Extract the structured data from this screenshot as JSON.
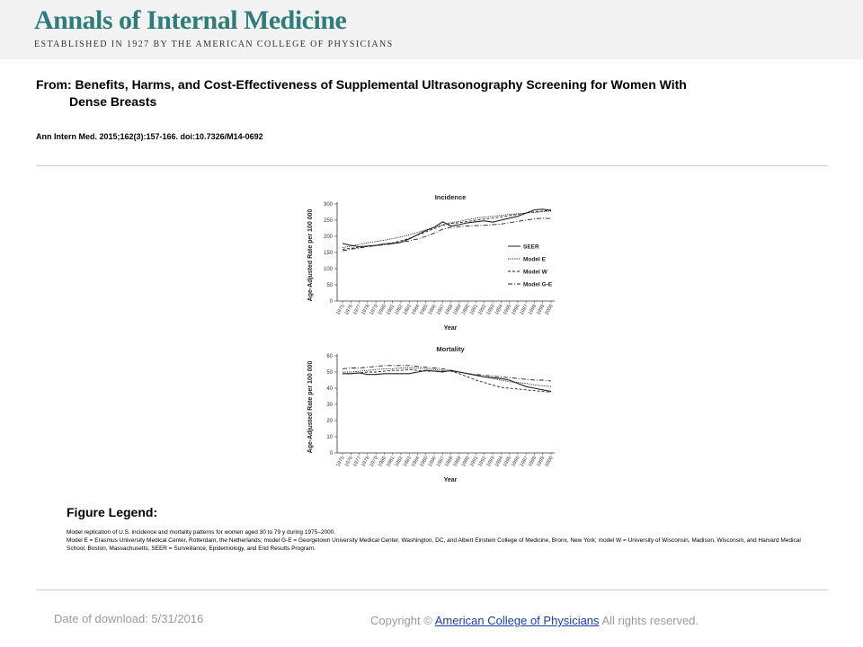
{
  "header": {
    "journal": "Annals of Internal Medicine",
    "established": "ESTABLISHED IN 1927 BY THE AMERICAN COLLEGE OF PHYSICIANS",
    "brand_color": "#2f7d7a"
  },
  "article": {
    "title_line1": "From: Benefits, Harms, and Cost-Effectiveness of Supplemental Ultrasonography Screening for Women With",
    "title_line2": "Dense Breasts",
    "citation": "Ann Intern Med. 2015;162(3):157-166. doi:10.7326/M14-0692"
  },
  "chart_data": [
    {
      "type": "line",
      "title": "Incidence",
      "xlabel": "Year",
      "ylabel": "Age-Adjusted Rate per 100 000",
      "ylim": [
        0,
        300
      ],
      "yticks": [
        0,
        50,
        100,
        150,
        200,
        250,
        300
      ],
      "legend": "right",
      "x": [
        1975,
        1976,
        1977,
        1978,
        1979,
        1980,
        1981,
        1982,
        1983,
        1984,
        1985,
        1986,
        1987,
        1988,
        1989,
        1990,
        1991,
        1992,
        1993,
        1994,
        1995,
        1996,
        1997,
        1998,
        1999,
        2000
      ],
      "series": [
        {
          "name": "SEER",
          "values": [
            178,
            172,
            168,
            170,
            172,
            176,
            178,
            182,
            192,
            205,
            218,
            228,
            245,
            232,
            236,
            242,
            245,
            248,
            244,
            250,
            256,
            262,
            272,
            282,
            284,
            280
          ]
        },
        {
          "name": "Model E",
          "values": [
            165,
            170,
            175,
            180,
            184,
            188,
            193,
            198,
            205,
            212,
            220,
            228,
            236,
            242,
            246,
            252,
            256,
            260,
            262,
            265,
            268,
            270,
            272,
            274,
            276,
            278
          ]
        },
        {
          "name": "Model W",
          "values": [
            160,
            163,
            166,
            169,
            172,
            176,
            180,
            186,
            194,
            204,
            214,
            224,
            234,
            240,
            242,
            246,
            250,
            254,
            256,
            260,
            264,
            268,
            272,
            276,
            278,
            282
          ]
        },
        {
          "name": "Model G-E",
          "values": [
            155,
            160,
            164,
            168,
            171,
            174,
            177,
            181,
            186,
            192,
            200,
            210,
            222,
            228,
            230,
            232,
            233,
            234,
            236,
            238,
            242,
            246,
            250,
            254,
            256,
            255
          ]
        }
      ]
    },
    {
      "type": "line",
      "title": "Mortality",
      "xlabel": "Year",
      "ylabel": "Age-Adjusted Rate per 100 000",
      "ylim": [
        0,
        60
      ],
      "yticks": [
        0,
        10,
        20,
        30,
        40,
        50,
        60
      ],
      "x": [
        1975,
        1976,
        1977,
        1978,
        1979,
        1980,
        1981,
        1982,
        1983,
        1984,
        1985,
        1986,
        1987,
        1988,
        1989,
        1990,
        1991,
        1992,
        1993,
        1994,
        1995,
        1996,
        1997,
        1998,
        1999,
        2000
      ],
      "series": [
        {
          "name": "SEER",
          "values": [
            49,
            49,
            49.5,
            48.5,
            48.5,
            49,
            49,
            49,
            49,
            50,
            51,
            50.5,
            50,
            51,
            50,
            49,
            48,
            47,
            46.5,
            46,
            45,
            43,
            41,
            40,
            39,
            38
          ]
        },
        {
          "name": "Model E",
          "values": [
            50,
            50,
            50.5,
            51,
            51.5,
            52,
            52,
            52.5,
            52.5,
            52.5,
            52,
            51.5,
            51,
            50.5,
            50,
            49,
            48,
            47,
            46,
            45,
            44,
            43.5,
            43,
            42,
            41.5,
            41
          ]
        },
        {
          "name": "Model W",
          "values": [
            49,
            49,
            49.5,
            50,
            50,
            50.5,
            51,
            51,
            51.5,
            51,
            50.5,
            50.5,
            50.5,
            50.5,
            49,
            47,
            45,
            43.5,
            42,
            40.5,
            40,
            39.5,
            39,
            38.5,
            38,
            37.5
          ]
        },
        {
          "name": "Model G-E",
          "values": [
            52,
            52.5,
            52.5,
            53,
            53.5,
            54,
            54,
            54,
            54,
            53.5,
            53,
            52.5,
            52,
            51,
            50,
            49,
            48.5,
            48,
            47.5,
            47,
            46.5,
            46,
            45.5,
            45,
            45,
            44.5
          ]
        }
      ]
    }
  ],
  "figure": {
    "legend_heading": "Figure Legend:",
    "legend_line1": "Model replication of U.S. incidence and mortality patterns for women aged 30 to 79 y during 1975–2000.",
    "legend_line2": "Model E = Erasmus University Medical Center, Rotterdam, the Netherlands; model G-E = Georgetown University Medical Center, Washington, DC, and Albert Einstein College of Medicine, Bronx, New York; model W = University of Wisconsin, Madison, Wisconsin, and Harvard Medical School, Boston, Massachusetts; SEER = Surveillance, Epidemiology, and End Results Program."
  },
  "footer": {
    "date_label": "Date of download:",
    "date_value": "5/31/2016",
    "copyright_prefix": "Copyright ©",
    "copyright_link": "American College of Physicians",
    "copyright_suffix": "All rights reserved."
  }
}
